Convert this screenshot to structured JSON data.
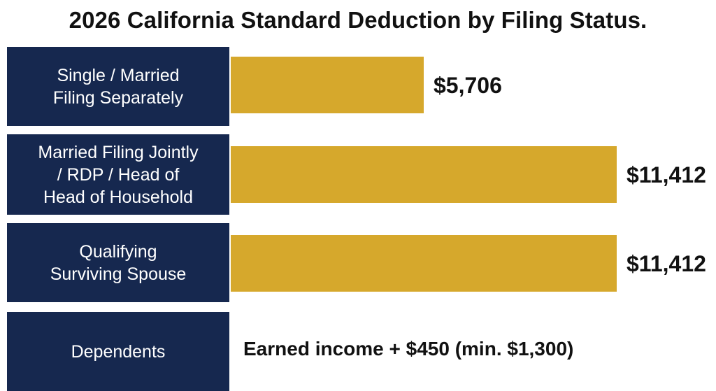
{
  "title": "2026 California Standard Deduction by Filing Status.",
  "colors": {
    "label_box": "#16284f",
    "bar": "#d6a82c",
    "text": "#111111"
  },
  "chart_data": {
    "type": "bar",
    "orientation": "horizontal",
    "title": "2026 California Standard Deduction by Filing Status.",
    "categories": [
      "Single / Married Filing Separately",
      "Married Filing Jointly / RDP / Head of Head of Household",
      "Qualifying Surviving Spouse"
    ],
    "values": [
      5706,
      11412,
      11412
    ],
    "value_labels": [
      "$5,706",
      "$11,412",
      "$11,412"
    ],
    "xlim": [
      0,
      11412
    ],
    "grid": false,
    "legend": "none"
  },
  "rows": [
    {
      "lines": [
        "Single / Married",
        "Filing Separately"
      ]
    },
    {
      "lines": [
        "Married Filing Jointly",
        "/ RDP / Head of",
        "Head of Household"
      ]
    },
    {
      "lines": [
        "Qualifying",
        "Surviving Spouse"
      ]
    }
  ],
  "dependents": {
    "label": "Dependents",
    "text": "Earned income + $450 (min. $1,300)"
  }
}
